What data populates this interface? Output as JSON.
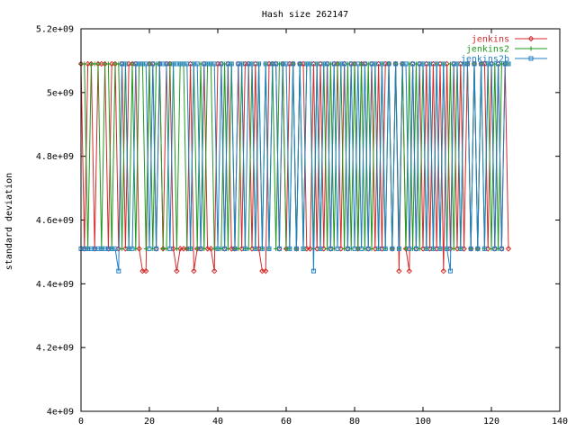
{
  "chart_data": {
    "type": "line",
    "title": "Hash size 262147",
    "xlabel": "",
    "ylabel": "standard deviation",
    "xlim": [
      0,
      140
    ],
    "ylim": [
      4000000000.0,
      5200000000.0
    ],
    "x_ticks": [
      {
        "value": 0,
        "label": "0"
      },
      {
        "value": 20,
        "label": "20"
      },
      {
        "value": 40,
        "label": "40"
      },
      {
        "value": 60,
        "label": "60"
      },
      {
        "value": 80,
        "label": "80"
      },
      {
        "value": 100,
        "label": "100"
      },
      {
        "value": 120,
        "label": "120"
      },
      {
        "value": 140,
        "label": "140"
      }
    ],
    "y_ticks": [
      {
        "value": 4000000000.0,
        "label": "4e+09"
      },
      {
        "value": 4200000000.0,
        "label": "4.2e+09"
      },
      {
        "value": 4400000000.0,
        "label": "4.4e+09"
      },
      {
        "value": 4600000000.0,
        "label": "4.6e+09"
      },
      {
        "value": 4800000000.0,
        "label": "4.8e+09"
      },
      {
        "value": 5000000000.0,
        "label": "5e+09"
      },
      {
        "value": 5200000000.0,
        "label": "5.2e+09"
      }
    ],
    "grid": false,
    "legend_position": "top-right",
    "series": [
      {
        "name": "jenkins",
        "color": "#d42a2a",
        "marker": "diamond",
        "x": [
          0,
          1,
          2,
          3,
          4,
          5,
          6,
          7,
          8,
          9,
          10,
          11,
          12,
          13,
          14,
          15,
          16,
          17,
          18,
          19,
          20,
          21,
          22,
          23,
          24,
          25,
          26,
          27,
          28,
          29,
          30,
          31,
          32,
          33,
          34,
          35,
          36,
          37,
          38,
          39,
          40,
          41,
          42,
          43,
          44,
          45,
          46,
          47,
          48,
          49,
          50,
          51,
          52,
          53,
          54,
          55,
          56,
          57,
          58,
          59,
          60,
          61,
          62,
          63,
          64,
          65,
          66,
          67,
          68,
          69,
          70,
          71,
          72,
          73,
          74,
          75,
          76,
          77,
          78,
          79,
          80,
          81,
          82,
          83,
          84,
          85,
          86,
          87,
          88,
          89,
          90,
          91,
          92,
          93,
          94,
          95,
          96,
          97,
          98,
          99,
          100,
          101,
          102,
          103,
          104,
          105,
          106,
          107,
          108,
          109,
          110,
          111,
          112,
          113,
          114,
          115,
          116,
          117,
          118,
          119,
          120,
          121,
          122,
          123,
          124,
          125
        ],
        "y": [
          5090000000.0,
          4510000000.0,
          5090000000.0,
          5090000000.0,
          4510000000.0,
          5090000000.0,
          5090000000.0,
          5090000000.0,
          4510000000.0,
          5090000000.0,
          5090000000.0,
          4510000000.0,
          5090000000.0,
          4510000000.0,
          5090000000.0,
          5090000000.0,
          5090000000.0,
          4510000000.0,
          4440000000.0,
          4440000000.0,
          5090000000.0,
          5090000000.0,
          4510000000.0,
          5090000000.0,
          4510000000.0,
          5090000000.0,
          5090000000.0,
          4510000000.0,
          4440000000.0,
          4510000000.0,
          4510000000.0,
          4510000000.0,
          5090000000.0,
          4440000000.0,
          4510000000.0,
          4510000000.0,
          5090000000.0,
          4510000000.0,
          4510000000.0,
          4440000000.0,
          5090000000.0,
          5090000000.0,
          4510000000.0,
          5090000000.0,
          4510000000.0,
          4510000000.0,
          5090000000.0,
          4510000000.0,
          5090000000.0,
          5090000000.0,
          4510000000.0,
          5090000000.0,
          4510000000.0,
          4440000000.0,
          4440000000.0,
          5090000000.0,
          5090000000.0,
          5090000000.0,
          4510000000.0,
          5090000000.0,
          4510000000.0,
          5090000000.0,
          5090000000.0,
          4510000000.0,
          5090000000.0,
          5090000000.0,
          4510000000.0,
          4510000000.0,
          5090000000.0,
          4510000000.0,
          5090000000.0,
          4510000000.0,
          5090000000.0,
          4510000000.0,
          5090000000.0,
          5090000000.0,
          4510000000.0,
          5090000000.0,
          4510000000.0,
          5090000000.0,
          5090000000.0,
          4510000000.0,
          5090000000.0,
          5090000000.0,
          4510000000.0,
          5090000000.0,
          4510000000.0,
          5090000000.0,
          4510000000.0,
          5090000000.0,
          5090000000.0,
          4510000000.0,
          5090000000.0,
          4440000000.0,
          5090000000.0,
          4510000000.0,
          4440000000.0,
          5090000000.0,
          4510000000.0,
          5090000000.0,
          4510000000.0,
          5090000000.0,
          4510000000.0,
          5090000000.0,
          4510000000.0,
          5090000000.0,
          4440000000.0,
          5090000000.0,
          4510000000.0,
          5090000000.0,
          4510000000.0,
          5090000000.0,
          4510000000.0,
          5090000000.0,
          4510000000.0,
          5090000000.0,
          4510000000.0,
          5090000000.0,
          5090000000.0,
          4510000000.0,
          5090000000.0,
          4510000000.0,
          5090000000.0,
          4510000000.0,
          5090000000.0,
          4510000000.0
        ]
      },
      {
        "name": "jenkins2",
        "color": "#1e9a1e",
        "marker": "plus",
        "x": [
          0,
          1,
          2,
          3,
          4,
          5,
          6,
          7,
          8,
          9,
          10,
          11,
          12,
          13,
          14,
          15,
          16,
          17,
          18,
          19,
          20,
          21,
          22,
          23,
          24,
          25,
          26,
          27,
          28,
          29,
          30,
          31,
          32,
          33,
          34,
          35,
          36,
          37,
          38,
          39,
          40,
          41,
          42,
          43,
          44,
          45,
          46,
          47,
          48,
          49,
          50,
          51,
          52,
          53,
          54,
          55,
          56,
          57,
          58,
          59,
          60,
          61,
          62,
          63,
          64,
          65,
          66,
          67,
          68,
          69,
          70,
          71,
          72,
          73,
          74,
          75,
          76,
          77,
          78,
          79,
          80,
          81,
          82,
          83,
          84,
          85,
          86,
          87,
          88,
          89,
          90,
          91,
          92,
          93,
          94,
          95,
          96,
          97,
          98,
          99,
          100,
          101,
          102,
          103,
          104,
          105,
          106,
          107,
          108,
          109,
          110,
          111,
          112,
          113,
          114,
          115,
          116,
          117,
          118,
          119,
          120,
          121,
          122,
          123,
          124,
          125
        ],
        "y": [
          5090000000.0,
          5090000000.0,
          4510000000.0,
          5090000000.0,
          5090000000.0,
          5090000000.0,
          4510000000.0,
          5090000000.0,
          5090000000.0,
          4510000000.0,
          5090000000.0,
          5090000000.0,
          4510000000.0,
          5090000000.0,
          4510000000.0,
          5090000000.0,
          4510000000.0,
          5090000000.0,
          5090000000.0,
          4510000000.0,
          5090000000.0,
          4510000000.0,
          5090000000.0,
          5090000000.0,
          4510000000.0,
          4510000000.0,
          5090000000.0,
          5090000000.0,
          4510000000.0,
          5090000000.0,
          5090000000.0,
          4510000000.0,
          4510000000.0,
          5090000000.0,
          4510000000.0,
          5090000000.0,
          4510000000.0,
          5090000000.0,
          5090000000.0,
          4510000000.0,
          4510000000.0,
          4510000000.0,
          5090000000.0,
          4510000000.0,
          5090000000.0,
          4510000000.0,
          4510000000.0,
          5090000000.0,
          4510000000.0,
          4510000000.0,
          5090000000.0,
          4510000000.0,
          5090000000.0,
          4510000000.0,
          5090000000.0,
          4510000000.0,
          5090000000.0,
          4510000000.0,
          5090000000.0,
          5090000000.0,
          4510000000.0,
          4510000000.0,
          5090000000.0,
          4510000000.0,
          5090000000.0,
          4510000000.0,
          5090000000.0,
          5090000000.0,
          4510000000.0,
          5090000000.0,
          4510000000.0,
          5090000000.0,
          4510000000.0,
          5090000000.0,
          4510000000.0,
          5090000000.0,
          5090000000.0,
          4510000000.0,
          5090000000.0,
          4510000000.0,
          5090000000.0,
          4510000000.0,
          5090000000.0,
          4510000000.0,
          5090000000.0,
          4510000000.0,
          5090000000.0,
          4510000000.0,
          5090000000.0,
          4510000000.0,
          5090000000.0,
          4510000000.0,
          5090000000.0,
          4510000000.0,
          5090000000.0,
          4510000000.0,
          5090000000.0,
          4510000000.0,
          5090000000.0,
          4510000000.0,
          5090000000.0,
          4510000000.0,
          5090000000.0,
          4510000000.0,
          5090000000.0,
          4510000000.0,
          5090000000.0,
          4510000000.0,
          5090000000.0,
          4510000000.0,
          5090000000.0,
          4510000000.0,
          5090000000.0,
          5090000000.0,
          4510000000.0,
          5090000000.0,
          4510000000.0,
          5090000000.0,
          4510000000.0,
          5090000000.0,
          4510000000.0,
          5090000000.0,
          4510000000.0,
          5090000000.0,
          5090000000.0,
          5090000000.0
        ]
      },
      {
        "name": "jenkins2b",
        "color": "#1f7fc4",
        "marker": "square",
        "x": [
          0,
          1,
          2,
          3,
          4,
          5,
          6,
          7,
          8,
          9,
          10,
          11,
          12,
          13,
          14,
          15,
          16,
          17,
          18,
          19,
          20,
          21,
          22,
          23,
          24,
          25,
          26,
          27,
          28,
          29,
          30,
          31,
          32,
          33,
          34,
          35,
          36,
          37,
          38,
          39,
          40,
          41,
          42,
          43,
          44,
          45,
          46,
          47,
          48,
          49,
          50,
          51,
          52,
          53,
          54,
          55,
          56,
          57,
          58,
          59,
          60,
          61,
          62,
          63,
          64,
          65,
          66,
          67,
          68,
          69,
          70,
          71,
          72,
          73,
          74,
          75,
          76,
          77,
          78,
          79,
          80,
          81,
          82,
          83,
          84,
          85,
          86,
          87,
          88,
          89,
          90,
          91,
          92,
          93,
          94,
          95,
          96,
          97,
          98,
          99,
          100,
          101,
          102,
          103,
          104,
          105,
          106,
          107,
          108,
          109,
          110,
          111,
          112,
          113,
          114,
          115,
          116,
          117,
          118,
          119,
          120,
          121,
          122,
          123,
          124,
          125
        ],
        "y": [
          4510000000.0,
          4510000000.0,
          4510000000.0,
          4510000000.0,
          4510000000.0,
          4510000000.0,
          4510000000.0,
          4510000000.0,
          4510000000.0,
          4510000000.0,
          4510000000.0,
          4440000000.0,
          5090000000.0,
          5090000000.0,
          4510000000.0,
          4510000000.0,
          5090000000.0,
          5090000000.0,
          5090000000.0,
          5090000000.0,
          4510000000.0,
          5090000000.0,
          4510000000.0,
          5090000000.0,
          5090000000.0,
          5090000000.0,
          4510000000.0,
          5090000000.0,
          5090000000.0,
          5090000000.0,
          5090000000.0,
          5090000000.0,
          4510000000.0,
          5090000000.0,
          5090000000.0,
          4510000000.0,
          5090000000.0,
          5090000000.0,
          5090000000.0,
          5090000000.0,
          4510000000.0,
          5090000000.0,
          4510000000.0,
          5090000000.0,
          5090000000.0,
          4510000000.0,
          5090000000.0,
          5090000000.0,
          4510000000.0,
          5090000000.0,
          5090000000.0,
          4510000000.0,
          5090000000.0,
          4510000000.0,
          5090000000.0,
          4510000000.0,
          5090000000.0,
          5090000000.0,
          4510000000.0,
          5090000000.0,
          5090000000.0,
          4510000000.0,
          5090000000.0,
          4510000000.0,
          5090000000.0,
          4510000000.0,
          5090000000.0,
          5090000000.0,
          4440000000.0,
          5090000000.0,
          4510000000.0,
          5090000000.0,
          5090000000.0,
          4510000000.0,
          5090000000.0,
          4510000000.0,
          5090000000.0,
          5090000000.0,
          4510000000.0,
          5090000000.0,
          4510000000.0,
          5090000000.0,
          4510000000.0,
          5090000000.0,
          4510000000.0,
          5090000000.0,
          5090000000.0,
          4510000000.0,
          5090000000.0,
          4510000000.0,
          5090000000.0,
          4510000000.0,
          5090000000.0,
          4510000000.0,
          5090000000.0,
          5090000000.0,
          4510000000.0,
          5090000000.0,
          4510000000.0,
          5090000000.0,
          5090000000.0,
          4510000000.0,
          5090000000.0,
          4510000000.0,
          5090000000.0,
          4510000000.0,
          5090000000.0,
          4510000000.0,
          4440000000.0,
          5090000000.0,
          5090000000.0,
          4510000000.0,
          5090000000.0,
          5090000000.0,
          4510000000.0,
          5090000000.0,
          4510000000.0,
          5090000000.0,
          4510000000.0,
          5090000000.0,
          5090000000.0,
          4510000000.0,
          5090000000.0,
          4510000000.0,
          5090000000.0,
          5090000000.0
        ]
      }
    ]
  }
}
